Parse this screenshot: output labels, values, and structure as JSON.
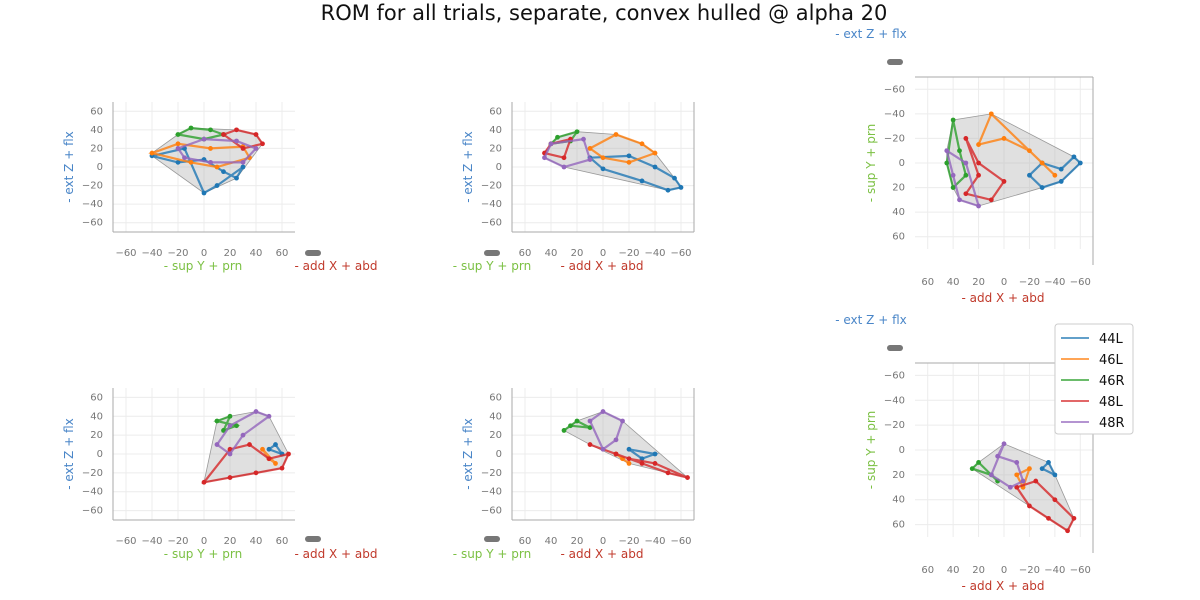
{
  "title": "ROM for all trials, separate, convex hulled @ alpha 20",
  "colors": {
    "44L": "#1f77b4",
    "46L": "#ff7f0e",
    "46R": "#2ca02c",
    "48L": "#d62728",
    "48R": "#9467bd",
    "hull": "#bbbbbb",
    "z_label": "#4a86c8",
    "y_label": "#7bc043",
    "x_label": "#c0392b",
    "tick": "#777777"
  },
  "legend": [
    "44L",
    "46L",
    "46R",
    "48L",
    "48R"
  ],
  "chart_data": {
    "type": "scatter",
    "units": "degrees",
    "series_names": [
      "44L",
      "46L",
      "46R",
      "48L",
      "48R"
    ],
    "axis_labels": {
      "z": [
        "- ext",
        "Z",
        "+ flx"
      ],
      "y": [
        "- sup",
        "Y",
        "+ prn"
      ],
      "x": [
        "- add",
        "X",
        "+ abd"
      ]
    },
    "tick_values": [
      -60,
      -40,
      -20,
      0,
      20,
      40,
      60
    ],
    "views": [
      {
        "row": 1,
        "view": "front",
        "h_axis": "y",
        "v_axis": "z",
        "h_range": [
          -70,
          70
        ],
        "v_range": [
          -70,
          70
        ]
      },
      {
        "row": 1,
        "view": "side",
        "h_axis": "y",
        "v_axis": "z",
        "h_range": [
          70,
          -70
        ],
        "v_range": [
          -70,
          70
        ]
      },
      {
        "row": 1,
        "view": "top",
        "h_axis": "x",
        "v_axis": "y",
        "h_range": [
          70,
          -70
        ],
        "v_range": [
          70,
          -70
        ]
      },
      {
        "row": 2,
        "view": "front",
        "h_axis": "y",
        "v_axis": "z",
        "h_range": [
          -70,
          70
        ],
        "v_range": [
          -70,
          70
        ]
      },
      {
        "row": 2,
        "view": "side",
        "h_axis": "y",
        "v_axis": "z",
        "h_range": [
          70,
          -70
        ],
        "v_range": [
          -70,
          70
        ]
      },
      {
        "row": 2,
        "view": "top",
        "h_axis": "x",
        "v_axis": "y",
        "h_range": [
          70,
          -70
        ],
        "v_range": [
          70,
          -70
        ]
      }
    ],
    "rows": [
      {
        "row": 1,
        "series": [
          {
            "name": "44L",
            "front": [
              [
                -40,
                12
              ],
              [
                -20,
                5
              ],
              [
                0,
                8
              ],
              [
                15,
                -5
              ],
              [
                25,
                -12
              ],
              [
                30,
                0
              ],
              [
                10,
                -20
              ],
              [
                0,
                -28
              ],
              [
                -15,
                20
              ]
            ],
            "side": [
              [
                -20,
                12
              ],
              [
                -40,
                0
              ],
              [
                -55,
                -12
              ],
              [
                -60,
                -22
              ],
              [
                -50,
                -25
              ],
              [
                -30,
                -15
              ],
              [
                0,
                -2
              ],
              [
                10,
                10
              ]
            ],
            "top": [
              [
                -30,
                0
              ],
              [
                -45,
                5
              ],
              [
                -55,
                -5
              ],
              [
                -60,
                0
              ],
              [
                -45,
                15
              ],
              [
                -30,
                20
              ],
              [
                -20,
                10
              ]
            ]
          },
          {
            "name": "46L",
            "front": [
              [
                -40,
                15
              ],
              [
                -20,
                25
              ],
              [
                5,
                20
              ],
              [
                30,
                22
              ],
              [
                35,
                10
              ],
              [
                10,
                0
              ],
              [
                -10,
                5
              ]
            ],
            "side": [
              [
                10,
                20
              ],
              [
                -10,
                35
              ],
              [
                -30,
                25
              ],
              [
                -40,
                15
              ],
              [
                -20,
                5
              ],
              [
                0,
                10
              ]
            ],
            "top": [
              [
                10,
                -40
              ],
              [
                20,
                -15
              ],
              [
                0,
                -20
              ],
              [
                -20,
                -10
              ],
              [
                -40,
                10
              ],
              [
                -30,
                0
              ]
            ]
          },
          {
            "name": "46R",
            "front": [
              [
                -20,
                35
              ],
              [
                -10,
                42
              ],
              [
                5,
                40
              ],
              [
                15,
                35
              ],
              [
                0,
                30
              ]
            ],
            "side": [
              [
                20,
                38
              ],
              [
                35,
                32
              ],
              [
                40,
                25
              ],
              [
                25,
                28
              ]
            ],
            "top": [
              [
                40,
                -35
              ],
              [
                35,
                -10
              ],
              [
                30,
                10
              ],
              [
                40,
                20
              ],
              [
                45,
                0
              ]
            ]
          },
          {
            "name": "48L",
            "front": [
              [
                15,
                35
              ],
              [
                25,
                40
              ],
              [
                40,
                35
              ],
              [
                45,
                25
              ],
              [
                30,
                20
              ]
            ],
            "side": [
              [
                25,
                30
              ],
              [
                40,
                25
              ],
              [
                45,
                15
              ],
              [
                30,
                10
              ]
            ],
            "top": [
              [
                30,
                -20
              ],
              [
                20,
                10
              ],
              [
                30,
                25
              ],
              [
                10,
                30
              ],
              [
                0,
                15
              ],
              [
                20,
                0
              ]
            ]
          },
          {
            "name": "48R",
            "front": [
              [
                -20,
                20
              ],
              [
                0,
                30
              ],
              [
                25,
                28
              ],
              [
                40,
                20
              ],
              [
                30,
                5
              ],
              [
                5,
                5
              ],
              [
                -15,
                10
              ]
            ],
            "side": [
              [
                15,
                30
              ],
              [
                40,
                25
              ],
              [
                45,
                10
              ],
              [
                30,
                0
              ],
              [
                10,
                8
              ]
            ],
            "top": [
              [
                45,
                -10
              ],
              [
                40,
                10
              ],
              [
                35,
                30
              ],
              [
                20,
                35
              ],
              [
                30,
                0
              ]
            ]
          }
        ]
      },
      {
        "row": 2,
        "series": [
          {
            "name": "44L",
            "front": [
              [
                55,
                10
              ],
              [
                60,
                0
              ],
              [
                50,
                5
              ]
            ],
            "side": [
              [
                -40,
                0
              ],
              [
                -30,
                -5
              ],
              [
                -20,
                5
              ]
            ],
            "top": [
              [
                -35,
                10
              ],
              [
                -40,
                20
              ],
              [
                -30,
                15
              ]
            ]
          },
          {
            "name": "46L",
            "front": [
              [
                45,
                5
              ],
              [
                55,
                -10
              ],
              [
                50,
                -5
              ]
            ],
            "side": [
              [
                -10,
                0
              ],
              [
                -20,
                -10
              ],
              [
                -15,
                -5
              ]
            ],
            "top": [
              [
                -20,
                15
              ],
              [
                -15,
                30
              ],
              [
                -10,
                20
              ]
            ]
          },
          {
            "name": "46R",
            "front": [
              [
                10,
                35
              ],
              [
                20,
                40
              ],
              [
                15,
                25
              ],
              [
                25,
                30
              ]
            ],
            "side": [
              [
                25,
                30
              ],
              [
                30,
                25
              ],
              [
                20,
                35
              ],
              [
                10,
                28
              ]
            ],
            "top": [
              [
                20,
                10
              ],
              [
                25,
                15
              ],
              [
                10,
                20
              ],
              [
                5,
                25
              ]
            ]
          },
          {
            "name": "48L",
            "front": [
              [
                0,
                -30
              ],
              [
                20,
                -25
              ],
              [
                40,
                -20
              ],
              [
                60,
                -15
              ],
              [
                65,
                0
              ],
              [
                50,
                -5
              ],
              [
                35,
                10
              ],
              [
                20,
                5
              ]
            ],
            "side": [
              [
                10,
                10
              ],
              [
                -10,
                0
              ],
              [
                -30,
                -10
              ],
              [
                -50,
                -20
              ],
              [
                -65,
                -25
              ],
              [
                -40,
                -10
              ],
              [
                -20,
                -5
              ]
            ],
            "top": [
              [
                -10,
                30
              ],
              [
                -20,
                45
              ],
              [
                -35,
                55
              ],
              [
                -50,
                65
              ],
              [
                -55,
                55
              ],
              [
                -40,
                40
              ],
              [
                -25,
                25
              ]
            ]
          },
          {
            "name": "48R",
            "front": [
              [
                10,
                10
              ],
              [
                20,
                30
              ],
              [
                40,
                45
              ],
              [
                50,
                40
              ],
              [
                30,
                20
              ],
              [
                20,
                0
              ]
            ],
            "side": [
              [
                10,
                35
              ],
              [
                0,
                45
              ],
              [
                -15,
                35
              ],
              [
                -10,
                15
              ],
              [
                0,
                5
              ]
            ],
            "top": [
              [
                0,
                -5
              ],
              [
                5,
                5
              ],
              [
                -10,
                10
              ],
              [
                -15,
                25
              ],
              [
                -5,
                30
              ],
              [
                10,
                20
              ]
            ]
          }
        ]
      }
    ]
  }
}
